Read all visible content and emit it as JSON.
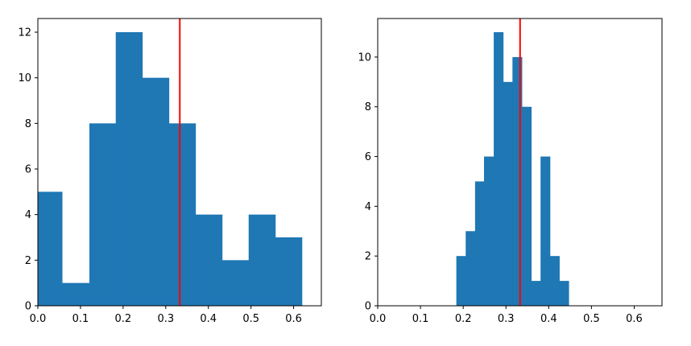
{
  "chart_data": [
    {
      "type": "bar",
      "subtype": "histogram",
      "title": "",
      "xlabel": "",
      "ylabel": "",
      "xlim": [
        0,
        0.665
      ],
      "ylim": [
        0,
        12.6
      ],
      "xticks": [
        0.0,
        0.1,
        0.2,
        0.3,
        0.4,
        0.5,
        0.6
      ],
      "yticks": [
        0,
        2,
        4,
        6,
        8,
        10,
        12
      ],
      "xtick_labels": [
        "0.0",
        "0.1",
        "0.2",
        "0.3",
        "0.4",
        "0.5",
        "0.6"
      ],
      "ytick_labels": [
        "0",
        "2",
        "4",
        "6",
        "8",
        "10",
        "12"
      ],
      "bin_edges": [
        0.0,
        0.0567,
        0.1209,
        0.1827,
        0.2449,
        0.3073,
        0.3697,
        0.4321,
        0.4945,
        0.5569,
        0.6193
      ],
      "counts": [
        5,
        1,
        8,
        12,
        10,
        8,
        4,
        2,
        4,
        3
      ],
      "vline": {
        "x": 0.333,
        "color": "#ff0000"
      },
      "bar_color": "#1f77b4",
      "grid": false,
      "legend": "none"
    },
    {
      "type": "bar",
      "subtype": "histogram",
      "title": "",
      "xlabel": "",
      "ylabel": "",
      "xlim": [
        0,
        0.665
      ],
      "ylim": [
        0,
        11.55
      ],
      "xticks": [
        0.0,
        0.1,
        0.2,
        0.3,
        0.4,
        0.5,
        0.6
      ],
      "yticks": [
        0,
        2,
        4,
        6,
        8,
        10
      ],
      "xtick_labels": [
        "0.0",
        "0.1",
        "0.2",
        "0.3",
        "0.4",
        "0.5",
        "0.6"
      ],
      "ytick_labels": [
        "0",
        "2",
        "4",
        "6",
        "8",
        "10"
      ],
      "bin_edges": [
        0.1839,
        0.2058,
        0.2277,
        0.2486,
        0.2714,
        0.2933,
        0.3152,
        0.3371,
        0.359,
        0.3809,
        0.4028,
        0.4247,
        0.4466
      ],
      "counts": [
        2,
        3,
        5,
        6,
        11,
        9,
        10,
        8,
        1,
        6,
        2,
        1
      ],
      "vline": {
        "x": 0.333,
        "color": "#ff0000"
      },
      "bar_color": "#1f77b4",
      "grid": false,
      "legend": "none"
    }
  ]
}
